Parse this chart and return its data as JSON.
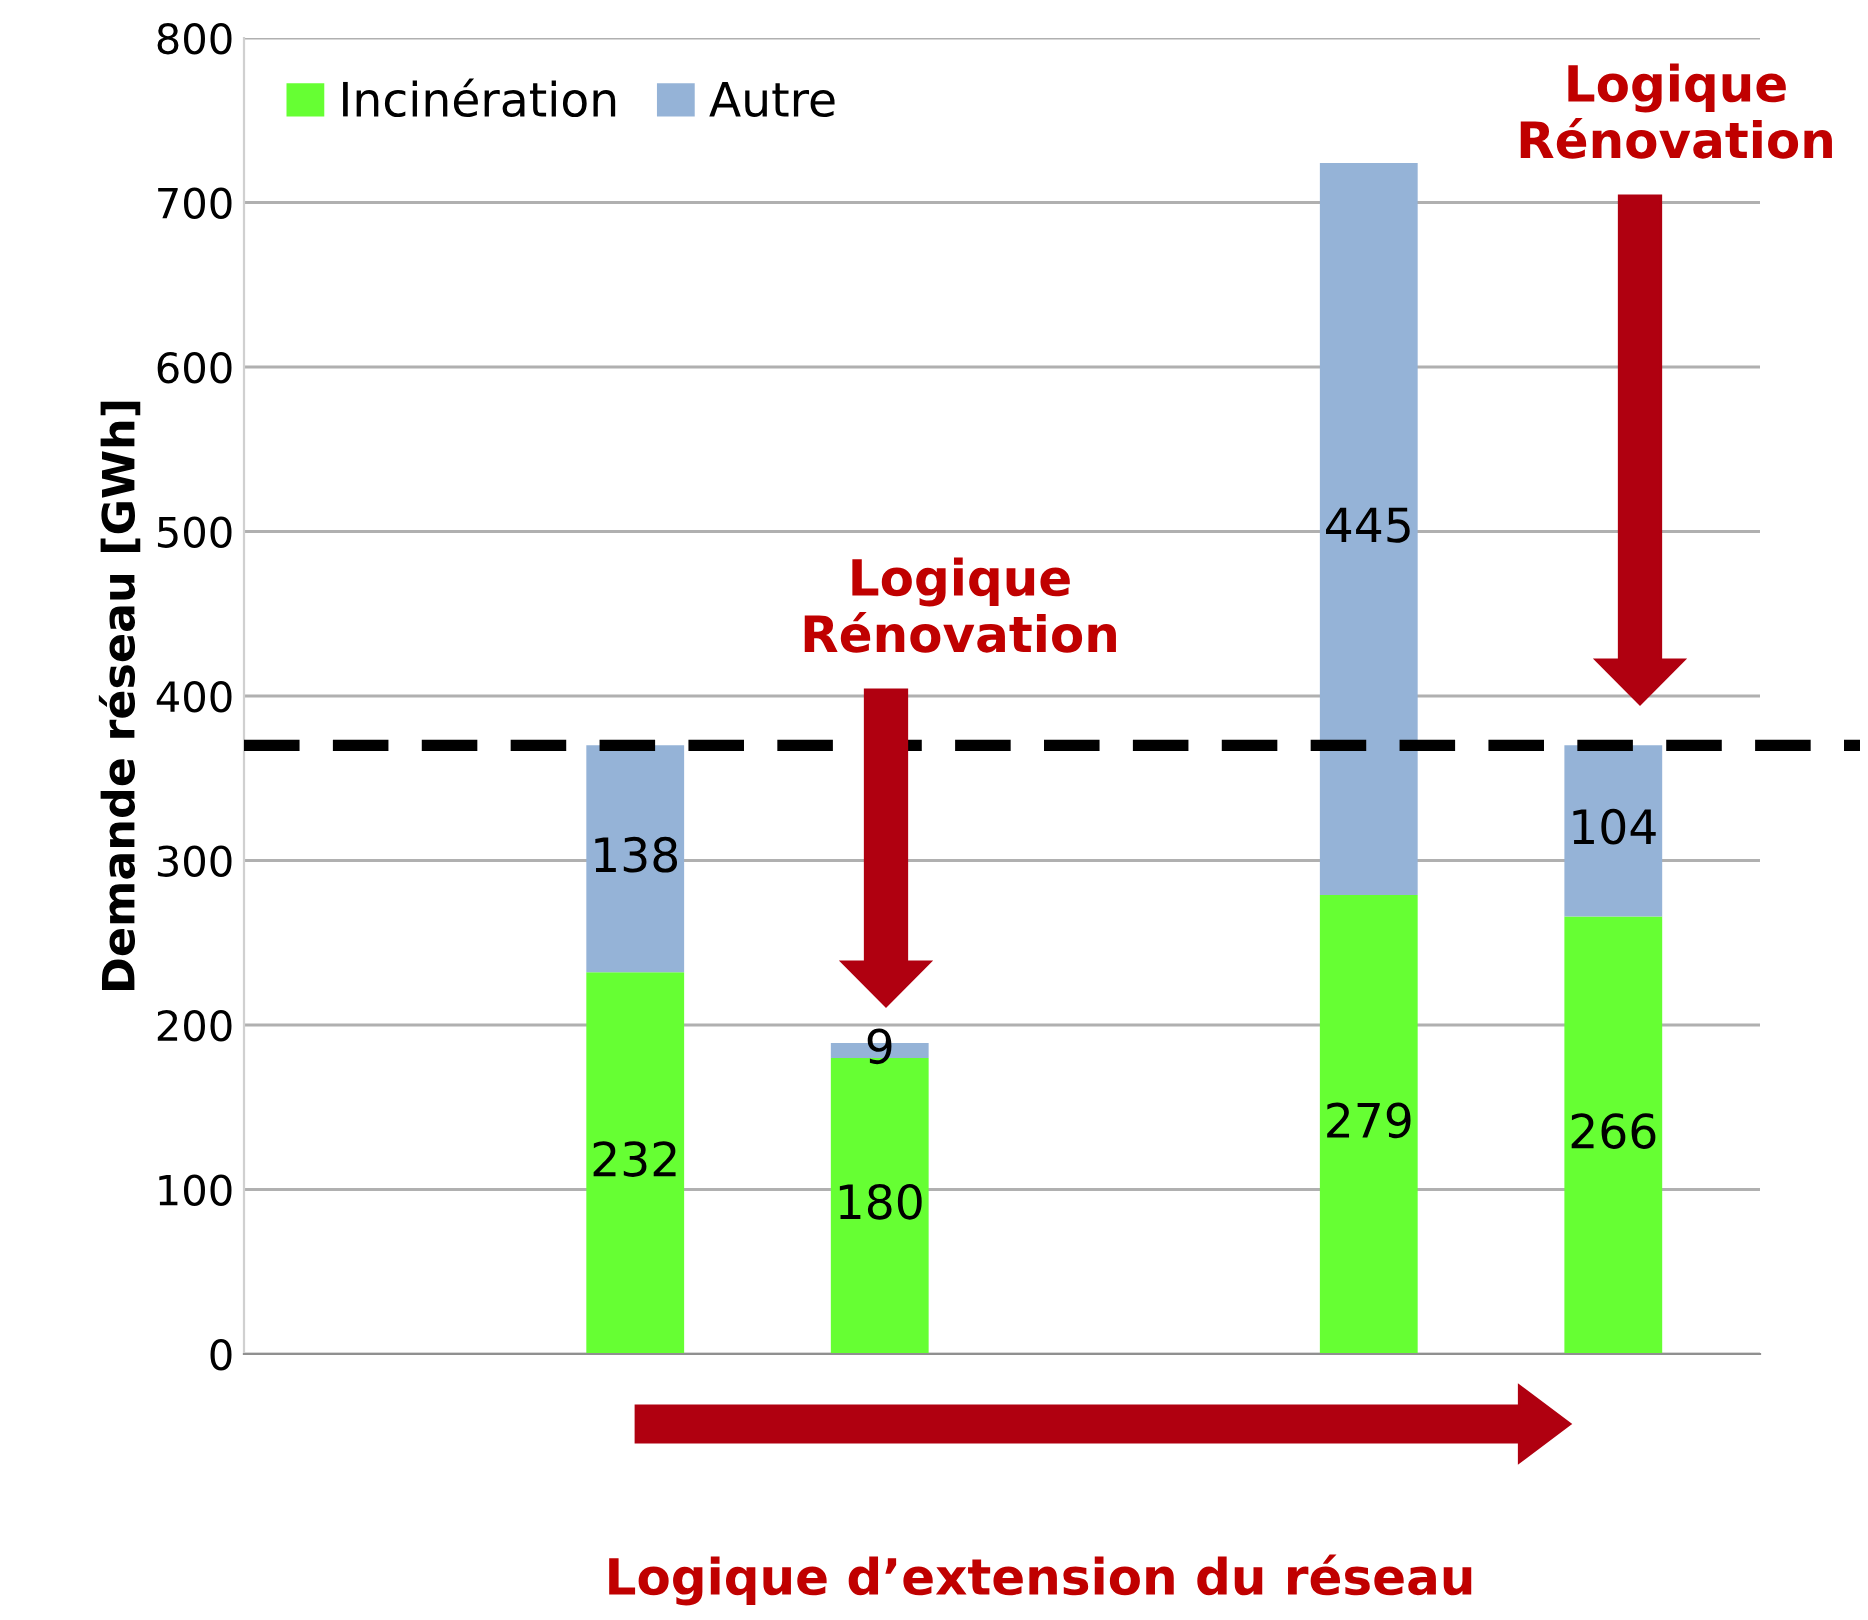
{
  "chart_data": {
    "type": "bar",
    "stacked": true,
    "ylabel": "Demande réseau [GWh]",
    "categories": [
      null,
      null,
      null,
      null,
      null,
      null
    ],
    "series": [
      {
        "name": "Incinération",
        "color": "#66ff33",
        "values": [
          null,
          232,
          180,
          null,
          279,
          266
        ]
      },
      {
        "name": "Autre",
        "color": "#95b3d7",
        "values": [
          null,
          138,
          9,
          null,
          445,
          104
        ]
      }
    ],
    "ylim": [
      0,
      800
    ],
    "yticks": [
      0,
      100,
      200,
      300,
      400,
      500,
      600,
      700,
      800
    ],
    "grid": "y",
    "legend": "top left",
    "tick_labels": "y",
    "data_labels": true,
    "ref_lines": [
      {
        "axis": "y",
        "value": 370,
        "color": "#000000",
        "line_style": "dashed"
      }
    ],
    "annotations": [
      "Logique Rénovation",
      "Logique Rénovation",
      "Logique d’extension du réseau"
    ]
  }
}
